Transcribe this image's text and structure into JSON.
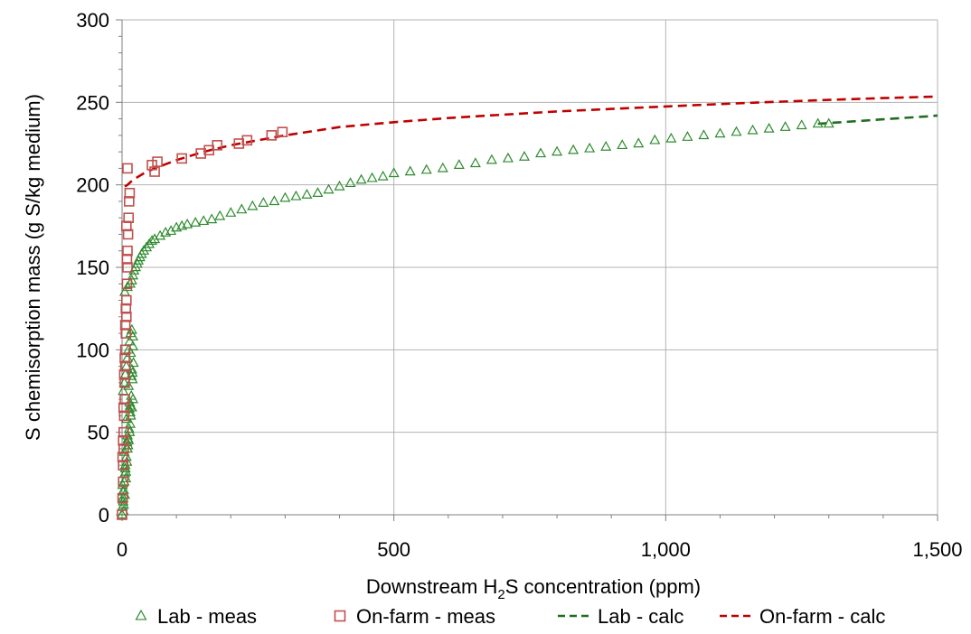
{
  "chart_data": {
    "type": "scatter",
    "xlabel": {
      "prefix": "Downstream H",
      "sub": "2",
      "suffix": "S concentration (ppm)"
    },
    "ylabel": "S chemisorption mass (g S/kg medium)",
    "xlim": [
      0,
      1500
    ],
    "ylim": [
      0,
      300
    ],
    "x_ticks": [
      0,
      500,
      1000,
      1500
    ],
    "x_tick_labels": [
      "0",
      "500",
      "1,000",
      "1,500"
    ],
    "y_ticks": [
      0,
      50,
      100,
      150,
      200,
      250,
      300
    ],
    "y_tick_labels": [
      "0",
      "50",
      "100",
      "150",
      "200",
      "250",
      "300"
    ],
    "grid": true,
    "legend_position": "bottom",
    "series": [
      {
        "name": "Lab - meas",
        "kind": "scatter",
        "marker": "triangle",
        "color": "#2e8b2e",
        "x": [
          0,
          1,
          2,
          3,
          4,
          5,
          6,
          8,
          10,
          12,
          14,
          15,
          16,
          18,
          20,
          2,
          4,
          6,
          8,
          10,
          12,
          14,
          16,
          18,
          20,
          3,
          5,
          7,
          9,
          11,
          13,
          15,
          17,
          19,
          21,
          2,
          6,
          10,
          14,
          18,
          1,
          4,
          8,
          12,
          16,
          20,
          3,
          7,
          11,
          15,
          19,
          2,
          9,
          13,
          17,
          5,
          10,
          15,
          18,
          20,
          22,
          25,
          28,
          30,
          33,
          36,
          40,
          45,
          50,
          55,
          60,
          70,
          80,
          90,
          100,
          110,
          120,
          135,
          150,
          165,
          180,
          200,
          220,
          240,
          260,
          280,
          300,
          320,
          340,
          360,
          380,
          400,
          420,
          440,
          460,
          480,
          500,
          530,
          560,
          590,
          620,
          650,
          680,
          710,
          740,
          770,
          800,
          830,
          860,
          890,
          920,
          950,
          980,
          1010,
          1040,
          1070,
          1100,
          1130,
          1160,
          1190,
          1220,
          1250,
          1280,
          1300
        ],
        "y": [
          0,
          5,
          10,
          15,
          20,
          25,
          30,
          35,
          40,
          45,
          50,
          55,
          60,
          65,
          70,
          75,
          80,
          85,
          90,
          95,
          100,
          105,
          110,
          112,
          108,
          2,
          12,
          22,
          32,
          42,
          52,
          62,
          72,
          82,
          92,
          8,
          28,
          48,
          68,
          88,
          18,
          38,
          58,
          78,
          98,
          102,
          6,
          26,
          46,
          66,
          86,
          14,
          44,
          64,
          84,
          135,
          138,
          140,
          142,
          145,
          148,
          150,
          152,
          154,
          156,
          158,
          160,
          162,
          164,
          166,
          167,
          169,
          171,
          172,
          174,
          175,
          176,
          177,
          178,
          179,
          181,
          183,
          185,
          187,
          189,
          190,
          192,
          193,
          194,
          195,
          197,
          199,
          201,
          203,
          204,
          205,
          207,
          208,
          209,
          210,
          212,
          213,
          215,
          216,
          217,
          219,
          220,
          221,
          222,
          223,
          224,
          225,
          227,
          228,
          229,
          230,
          231,
          232,
          233,
          234,
          235,
          236,
          237,
          237
        ]
      },
      {
        "name": "On-farm - meas",
        "kind": "scatter",
        "marker": "square",
        "color": "#c0504d",
        "x": [
          0,
          1,
          2,
          2,
          3,
          3,
          4,
          5,
          5,
          6,
          6,
          7,
          8,
          8,
          9,
          10,
          10,
          11,
          12,
          13,
          14,
          1,
          3,
          5,
          7,
          9,
          2,
          4,
          6,
          8,
          10,
          55,
          60,
          65,
          110,
          145,
          160,
          175,
          215,
          230,
          275,
          295
        ],
        "y": [
          0,
          10,
          20,
          30,
          40,
          50,
          60,
          70,
          80,
          90,
          100,
          110,
          120,
          130,
          140,
          150,
          160,
          170,
          180,
          190,
          195,
          35,
          65,
          95,
          125,
          155,
          45,
          85,
          115,
          175,
          210,
          212,
          208,
          214,
          216,
          219,
          221,
          224,
          225,
          227,
          230,
          232
        ]
      },
      {
        "name": "Lab - calc",
        "kind": "line",
        "dash": true,
        "color": "#1f6e1f",
        "x": [
          1280,
          1320,
          1360,
          1400,
          1440,
          1480,
          1500
        ],
        "y": [
          237.0,
          237.9,
          238.8,
          239.7,
          240.6,
          241.5,
          242.0
        ]
      },
      {
        "name": "On-farm - calc",
        "kind": "line",
        "dash": true,
        "color": "#c00000",
        "x": [
          5,
          10,
          20,
          40,
          60,
          100,
          150,
          200,
          250,
          300,
          400,
          500,
          600,
          700,
          800,
          900,
          1000,
          1100,
          1200,
          1300,
          1400,
          1500
        ],
        "y": [
          199,
          200,
          203,
          207,
          210,
          215,
          220,
          224,
          227,
          230,
          235,
          238,
          240.5,
          242.5,
          244.5,
          246,
          247.5,
          249,
          250.3,
          251.5,
          252.6,
          253.5
        ]
      }
    ]
  }
}
